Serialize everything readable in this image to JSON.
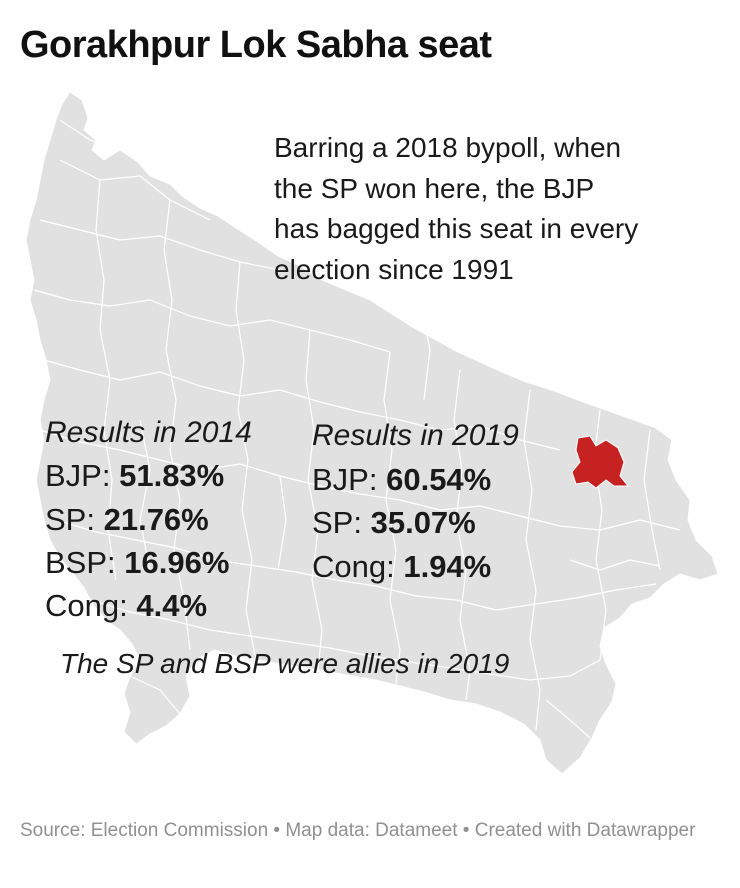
{
  "title": "Gorakhpur Lok Sabha seat",
  "note_lines": [
    "Barring a 2018 bypoll, when",
    "the SP won here, the BJP",
    "has bagged this seat in every",
    "election since 1991"
  ],
  "results_2014": {
    "heading": "Results in 2014",
    "rows": [
      {
        "party": "BJP: ",
        "value": "51.83%"
      },
      {
        "party": "SP: ",
        "value": "21.76%"
      },
      {
        "party": "BSP: ",
        "value": "16.96%"
      },
      {
        "party": "Cong: ",
        "value": "4.4%"
      }
    ]
  },
  "results_2019": {
    "heading": "Results in 2019",
    "rows": [
      {
        "party": "BJP: ",
        "value": "60.54%"
      },
      {
        "party": "SP: ",
        "value": "35.07%"
      },
      {
        "party": "Cong: ",
        "value": "1.94%"
      }
    ]
  },
  "allies_note": "The SP and BSP were allies in 2019",
  "source": "Source: Election Commission • Map data: Datameet • Created with Datawrapper",
  "colors": {
    "state_fill": "#e1e1e1",
    "boundary": "#ffffff",
    "highlight": "#c62222",
    "text": "#1a1a1a",
    "source_text": "#909090"
  },
  "map": {
    "highlighted_constituency": "Gorakhpur"
  }
}
